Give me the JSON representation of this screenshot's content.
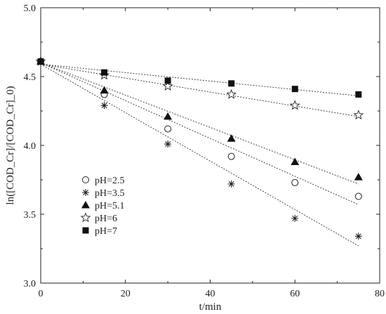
{
  "chart_data": {
    "type": "scatter",
    "title": "",
    "xlabel": "t/min",
    "ylabel": "ln([COD_Cr]/[COD_Cr]_0)",
    "xlim": [
      0,
      80
    ],
    "ylim": [
      3.0,
      5.0
    ],
    "x_ticks": [
      0,
      20,
      40,
      60,
      80
    ],
    "y_ticks": [
      3.0,
      3.5,
      4.0,
      4.5,
      5.0
    ],
    "x_tick_labels": [
      "0",
      "20",
      "40",
      "60",
      "80"
    ],
    "y_tick_labels": [
      "3.0",
      "3.5",
      "4.0",
      "4.5",
      "5.0"
    ],
    "grid": false,
    "legend_position": "bottom-left",
    "series": [
      {
        "name": "pH=2.5",
        "marker": "open-circle",
        "x": [
          0,
          15,
          30,
          45,
          60,
          75
        ],
        "y": [
          4.61,
          4.37,
          4.12,
          3.92,
          3.73,
          3.63
        ],
        "fit": {
          "x": [
            0,
            75
          ],
          "y": [
            4.6,
            3.57
          ]
        }
      },
      {
        "name": "pH=3.5",
        "marker": "asterisk",
        "x": [
          0,
          15,
          30,
          45,
          60,
          75
        ],
        "y": [
          4.61,
          4.29,
          4.01,
          3.72,
          3.47,
          3.34
        ],
        "fit": {
          "x": [
            0,
            75
          ],
          "y": [
            4.59,
            3.27
          ]
        }
      },
      {
        "name": "pH=5.1",
        "marker": "filled-triangle",
        "x": [
          0,
          15,
          30,
          45,
          60,
          75
        ],
        "y": [
          4.61,
          4.4,
          4.21,
          4.05,
          3.88,
          3.77
        ],
        "fit": {
          "x": [
            0,
            75
          ],
          "y": [
            4.6,
            3.72
          ]
        }
      },
      {
        "name": "pH=6",
        "marker": "open-star",
        "x": [
          0,
          15,
          30,
          45,
          60,
          75
        ],
        "y": [
          4.61,
          4.51,
          4.43,
          4.37,
          4.29,
          4.22
        ],
        "fit": {
          "x": [
            0,
            75
          ],
          "y": [
            4.59,
            4.21
          ]
        }
      },
      {
        "name": "pH=7",
        "marker": "filled-square",
        "x": [
          0,
          15,
          30,
          45,
          60,
          75
        ],
        "y": [
          4.61,
          4.53,
          4.47,
          4.45,
          4.41,
          4.37
        ],
        "fit": {
          "x": [
            0,
            75
          ],
          "y": [
            4.59,
            4.36
          ]
        }
      }
    ]
  }
}
